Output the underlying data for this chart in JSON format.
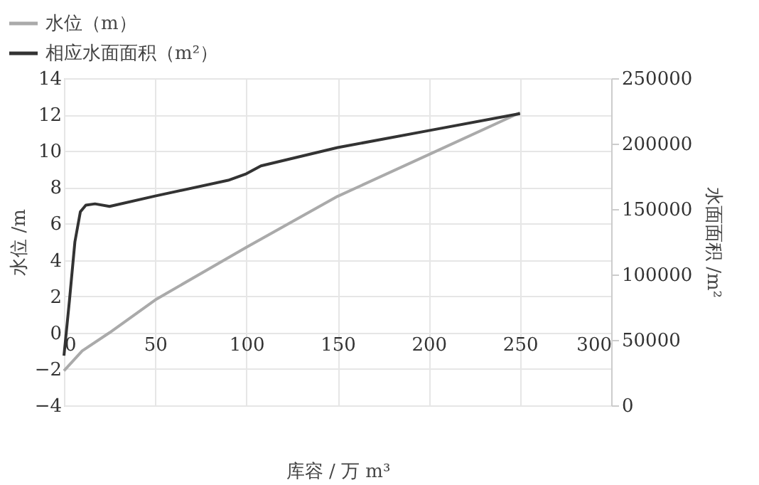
{
  "chart_data": {
    "type": "line",
    "xlabel": "库容 / 万 m³",
    "ylabel": "水位 /m",
    "y2label": "水面面积 /m²",
    "series": [
      {
        "name": "水位（m）",
        "color": "#aaaaaa",
        "x": [
          0,
          10,
          25,
          50,
          100,
          150,
          200,
          250
        ],
        "values": [
          -2.1,
          -1.0,
          0,
          1.8,
          4.7,
          7.5,
          9.8,
          12.1
        ]
      },
      {
        "name": "相应水面面积（m²）",
        "color": "#333333",
        "axis": "y2",
        "x": [
          0,
          3,
          6,
          9,
          12,
          17,
          25,
          50,
          90,
          100,
          108,
          150,
          200,
          250
        ],
        "values": [
          38000,
          80000,
          125000,
          148000,
          153000,
          154000,
          152000,
          160000,
          172000,
          177000,
          183000,
          197000,
          210000,
          223000
        ]
      }
    ],
    "xlim": [
      0,
      300
    ],
    "xticks": [
      0,
      50,
      100,
      150,
      200,
      250,
      300
    ],
    "ylim": [
      -4,
      14
    ],
    "yticks": [
      -4,
      -2,
      0,
      2,
      4,
      6,
      8,
      10,
      12,
      14
    ],
    "y2lim": [
      0,
      250000
    ],
    "y2ticks": [
      0,
      50000,
      100000,
      150000,
      200000,
      250000
    ],
    "grid": true,
    "legend": "top left",
    "marker": "none",
    "line_style": "solid"
  }
}
